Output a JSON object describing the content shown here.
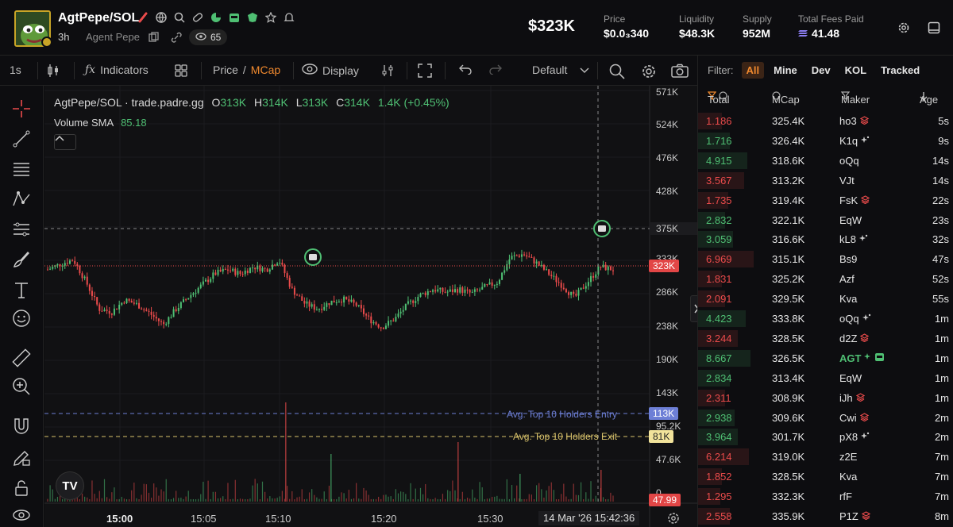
{
  "header": {
    "token_name": "AgtPepe/SOL",
    "age": "3h",
    "agent_name": "Agent Pepe",
    "views": "65",
    "market_cap": "$323K",
    "stats": [
      {
        "label": "Price",
        "value": "$0.0₃340"
      },
      {
        "label": "Liquidity",
        "value": "$48.3K"
      },
      {
        "label": "Supply",
        "value": "952M"
      },
      {
        "label": "Total Fees Paid",
        "value": "41.48"
      }
    ]
  },
  "toolbar": {
    "interval": "1s",
    "indicators": "Indicators",
    "price": "Price",
    "slash": "/",
    "mcap": "MCap",
    "display": "Display",
    "layout": "Default"
  },
  "chart": {
    "ohlc_title": "AgtPepe/SOL · trade.padre.gg",
    "o_label": "O",
    "o_val": "313K",
    "h_label": "H",
    "h_val": "314K",
    "l_label": "L",
    "l_val": "313K",
    "c_label": "C",
    "c_val": "314K",
    "change": "1.4K (+0.45%)",
    "volume_label": "Volume SMA",
    "volume_val": "85.18",
    "y_ticks": [
      "571K",
      "524K",
      "476K",
      "428K",
      "375K",
      "333K",
      "286K",
      "238K",
      "190K",
      "143K",
      "95.2K",
      "47.6K",
      "0"
    ],
    "x_ticks": [
      "15:00",
      "15:05",
      "15:10",
      "15:20",
      "15:30"
    ],
    "crosshair_date": "14 Mar '26   15:42:36",
    "current_tag": "323K",
    "entry_label": "Avg. Top 10 Holders Entry",
    "entry_tag": "113K",
    "exit_label": "Avg. Top 10 Holders Exit",
    "exit_tag": "81K",
    "volume_tag": "47.99",
    "tv_logo": "TV"
  },
  "chart_data": {
    "type": "candlestick",
    "y_axis_label": "MCap",
    "ylim": [
      0,
      571000
    ],
    "series_shape": [
      318000,
      326000,
      332000,
      300000,
      262000,
      258000,
      275000,
      268000,
      255000,
      240000,
      262000,
      280000,
      296000,
      312000,
      318000,
      312000,
      322000,
      318000,
      332000,
      290000,
      270000,
      262000,
      272000,
      276000,
      268000,
      248000,
      236000,
      248000,
      268000,
      282000,
      290000,
      286000,
      290000,
      284000,
      293000,
      300000,
      335000,
      340000,
      328000,
      312000,
      296000,
      278000,
      300000,
      322000,
      318000
    ]
  },
  "panel": {
    "filter_label": "Filter:",
    "filters": [
      "All",
      "Mine",
      "Dev",
      "KOL",
      "Tracked"
    ],
    "columns": {
      "total": "Total",
      "mcap": "MCap",
      "maker": "Maker",
      "age": "Age"
    },
    "trades": [
      {
        "total": "1.186",
        "side": "sell",
        "mcap": "325.4K",
        "maker": "ho3",
        "tag": "stack",
        "age": "5s"
      },
      {
        "total": "1.716",
        "side": "buy",
        "mcap": "326.4K",
        "maker": "K1q",
        "tag": "spark",
        "age": "9s"
      },
      {
        "total": "4.915",
        "side": "buy",
        "mcap": "318.6K",
        "maker": "oQq",
        "tag": "",
        "age": "14s"
      },
      {
        "total": "3.567",
        "side": "sell",
        "mcap": "313.2K",
        "maker": "VJt",
        "tag": "",
        "age": "14s"
      },
      {
        "total": "1.735",
        "side": "sell",
        "mcap": "319.4K",
        "maker": "FsK",
        "tag": "stack",
        "age": "22s"
      },
      {
        "total": "2.832",
        "side": "buy",
        "mcap": "322.1K",
        "maker": "EqW",
        "tag": "",
        "age": "23s"
      },
      {
        "total": "3.059",
        "side": "buy",
        "mcap": "316.6K",
        "maker": "kL8",
        "tag": "spark",
        "age": "32s"
      },
      {
        "total": "6.969",
        "side": "sell",
        "mcap": "315.1K",
        "maker": "Bs9",
        "tag": "",
        "age": "47s"
      },
      {
        "total": "1.831",
        "side": "sell",
        "mcap": "325.2K",
        "maker": "Azf",
        "tag": "",
        "age": "52s"
      },
      {
        "total": "2.091",
        "side": "sell",
        "mcap": "329.5K",
        "maker": "Kva",
        "tag": "",
        "age": "55s"
      },
      {
        "total": "4.423",
        "side": "buy",
        "mcap": "333.8K",
        "maker": "oQq",
        "tag": "spark",
        "age": "1m"
      },
      {
        "total": "3.244",
        "side": "sell",
        "mcap": "328.5K",
        "maker": "d2Z",
        "tag": "stack",
        "age": "1m"
      },
      {
        "total": "8.667",
        "side": "buy",
        "mcap": "326.5K",
        "maker": "AGT",
        "tag": "agent",
        "age": "1m"
      },
      {
        "total": "2.834",
        "side": "buy",
        "mcap": "313.4K",
        "maker": "EqW",
        "tag": "",
        "age": "1m"
      },
      {
        "total": "2.311",
        "side": "sell",
        "mcap": "308.9K",
        "maker": "iJh",
        "tag": "stack",
        "age": "1m"
      },
      {
        "total": "2.938",
        "side": "buy",
        "mcap": "309.6K",
        "maker": "Cwi",
        "tag": "stack",
        "age": "2m"
      },
      {
        "total": "3.964",
        "side": "buy",
        "mcap": "301.7K",
        "maker": "pX8",
        "tag": "spark",
        "age": "2m"
      },
      {
        "total": "6.214",
        "side": "sell",
        "mcap": "319.0K",
        "maker": "z2E",
        "tag": "",
        "age": "7m"
      },
      {
        "total": "1.852",
        "side": "sell",
        "mcap": "328.5K",
        "maker": "Kva",
        "tag": "",
        "age": "7m"
      },
      {
        "total": "1.295",
        "side": "sell",
        "mcap": "332.3K",
        "maker": "rfF",
        "tag": "",
        "age": "7m"
      },
      {
        "total": "2.558",
        "side": "sell",
        "mcap": "335.9K",
        "maker": "P1Z",
        "tag": "stack",
        "age": "8m"
      }
    ]
  },
  "colors": {
    "accent": "#f0892e",
    "buy": "#4fbf73",
    "sell": "#ea4b4b",
    "entry": "#6d7fd6",
    "exit": "#d9c36b"
  }
}
